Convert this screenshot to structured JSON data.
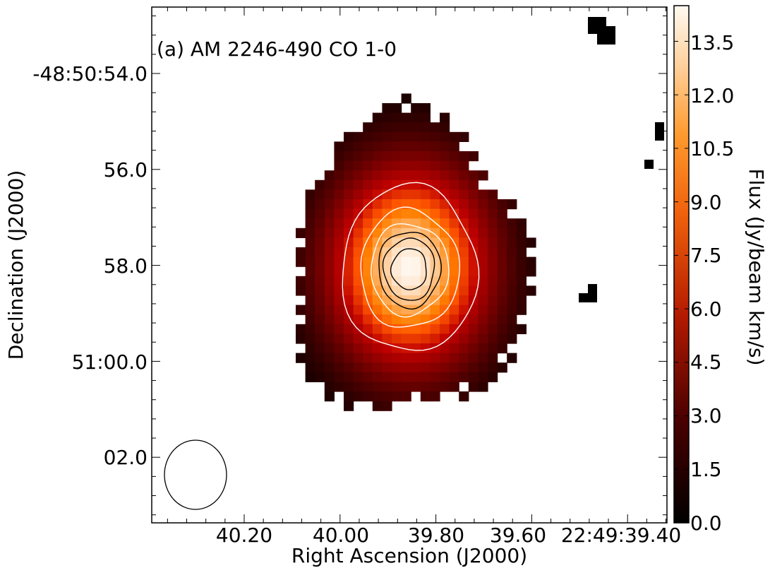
{
  "chart_data": {
    "type": "heatmap",
    "title": "(a) AM 2246-490 CO 1-0",
    "xlabel": "Right Ascension (J2000)",
    "ylabel": "Declination (J2000)",
    "colorbar_label": "Flux (Jy/beam km/s)",
    "colormap": "gist_heat",
    "colorbar_range": [
      0.0,
      14.5
    ],
    "x_ticks": [
      "40.20",
      "40.00",
      "39.80",
      "39.60",
      "22:49:39.40"
    ],
    "y_ticks": [
      "-48:50:54.0",
      "56.0",
      "58.0",
      "51:00.0",
      "02.0"
    ],
    "colorbar_ticks": [
      "0.0",
      "1.5",
      "3.0",
      "4.5",
      "6.0",
      "7.5",
      "9.0",
      "10.5",
      "12.0",
      "13.5"
    ],
    "peak_flux": 14.3,
    "contour_lines_white": 3,
    "contour_lines_black": 3,
    "beam": "ellipse, lower-left"
  }
}
